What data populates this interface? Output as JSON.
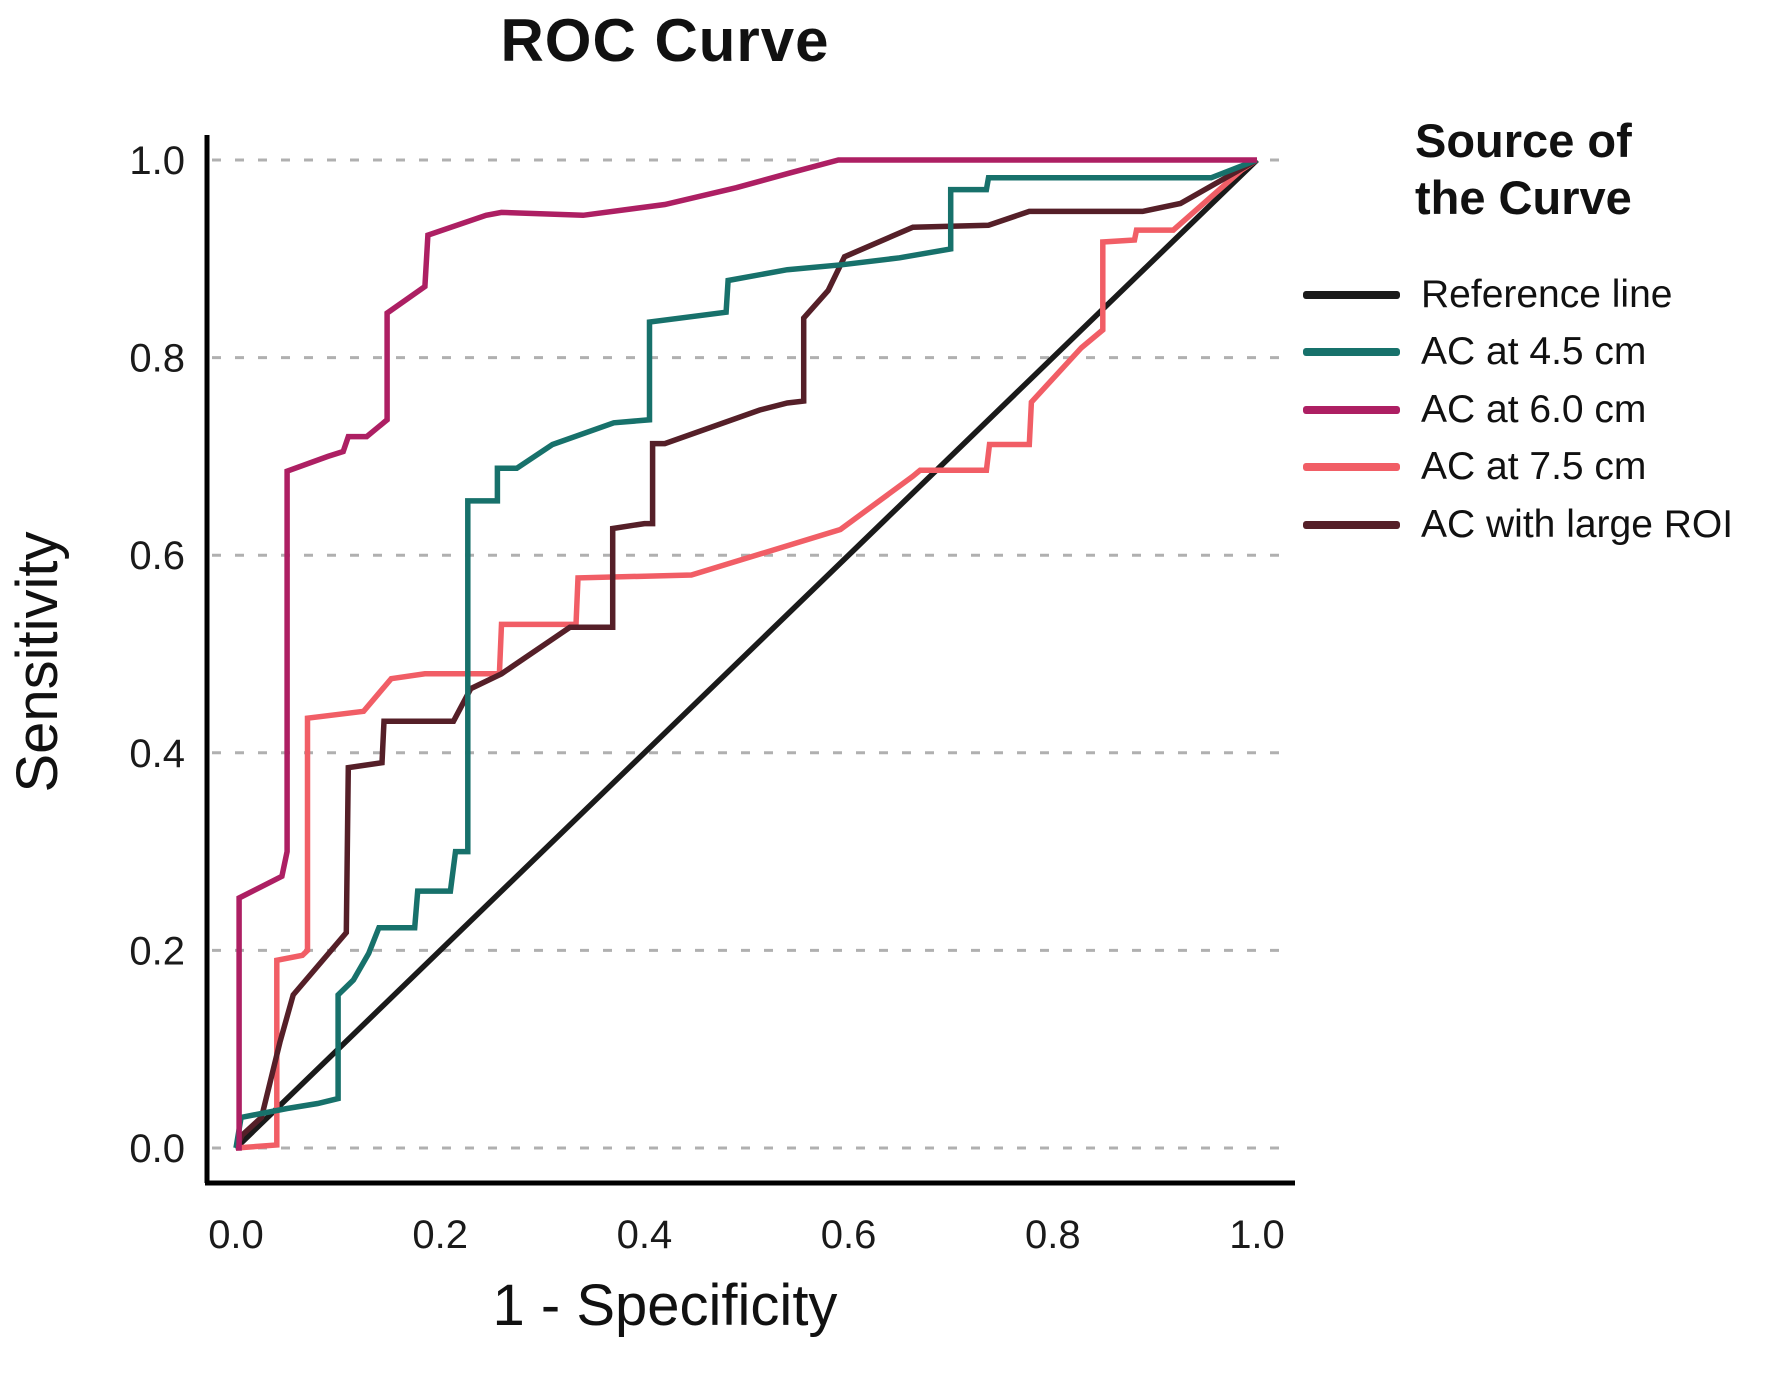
{
  "title": "ROC Curve",
  "x_axis": {
    "label": "1 - Specificity",
    "tick_labels": [
      "0.0",
      "0.2",
      "0.4",
      "0.6",
      "0.8",
      "1.0"
    ],
    "tick_values": [
      0,
      0.2,
      0.4,
      0.6,
      0.8,
      1.0
    ]
  },
  "y_axis": {
    "label": "Sensitivity",
    "tick_labels": [
      "0.0",
      "0.2",
      "0.4",
      "0.6",
      "0.8",
      "1.0"
    ],
    "tick_values": [
      0,
      0.2,
      0.4,
      0.6,
      0.8,
      1.0
    ]
  },
  "legend": {
    "title_lines": [
      "Source of",
      "the Curve"
    ],
    "entries": [
      {
        "label": "Reference line",
        "color": "#1a1a1a"
      },
      {
        "label": "AC at 4.5 cm",
        "color": "#17716b"
      },
      {
        "label": "AC at 6.0 cm",
        "color": "#ad1f63"
      },
      {
        "label": "AC at 7.5 cm",
        "color": "#f15e66"
      },
      {
        "label": "AC with large ROI",
        "color": "#551f28"
      }
    ]
  },
  "colors": {
    "axis": "#000000",
    "grid": "#b0b0b0",
    "background": "#ffffff"
  },
  "chart_data": {
    "type": "line",
    "subtype": "roc-step-curves",
    "title": "ROC Curve",
    "xlabel": "1 - Specificity",
    "ylabel": "Sensitivity",
    "xlim": [
      0,
      1
    ],
    "ylim": [
      0,
      1
    ],
    "grid": "horizontal dashed lines at 0.0,0.2,0.4,0.6,0.8,1.0",
    "legend_position": "right",
    "series": [
      {
        "name": "Reference line",
        "color": "#1a1a1a",
        "points": [
          [
            0,
            0
          ],
          [
            1,
            1
          ]
        ]
      },
      {
        "name": "AC at 7.5 cm",
        "color": "#f15e66",
        "points": [
          [
            0,
            0
          ],
          [
            0.04,
            0.003
          ],
          [
            0.04,
            0.19
          ],
          [
            0.065,
            0.195
          ],
          [
            0.07,
            0.2
          ],
          [
            0.07,
            0.435
          ],
          [
            0.125,
            0.442
          ],
          [
            0.152,
            0.475
          ],
          [
            0.185,
            0.48
          ],
          [
            0.258,
            0.48
          ],
          [
            0.26,
            0.53
          ],
          [
            0.333,
            0.53
          ],
          [
            0.335,
            0.577
          ],
          [
            0.446,
            0.58
          ],
          [
            0.592,
            0.626
          ],
          [
            0.663,
            0.68
          ],
          [
            0.67,
            0.686
          ],
          [
            0.735,
            0.686
          ],
          [
            0.738,
            0.712
          ],
          [
            0.777,
            0.712
          ],
          [
            0.779,
            0.755
          ],
          [
            0.828,
            0.81
          ],
          [
            0.849,
            0.828
          ],
          [
            0.849,
            0.917
          ],
          [
            0.88,
            0.919
          ],
          [
            0.882,
            0.929
          ],
          [
            0.918,
            0.929
          ],
          [
            0.985,
            0.99
          ],
          [
            1,
            1
          ]
        ]
      },
      {
        "name": "AC with large ROI",
        "color": "#551f28",
        "points": [
          [
            0,
            0
          ],
          [
            0.006,
            0.013
          ],
          [
            0.025,
            0.031
          ],
          [
            0.043,
            0.107
          ],
          [
            0.056,
            0.155
          ],
          [
            0.108,
            0.218
          ],
          [
            0.11,
            0.385
          ],
          [
            0.143,
            0.39
          ],
          [
            0.145,
            0.432
          ],
          [
            0.213,
            0.432
          ],
          [
            0.23,
            0.465
          ],
          [
            0.26,
            0.48
          ],
          [
            0.327,
            0.527
          ],
          [
            0.369,
            0.527
          ],
          [
            0.369,
            0.627
          ],
          [
            0.4,
            0.632
          ],
          [
            0.408,
            0.632
          ],
          [
            0.408,
            0.713
          ],
          [
            0.42,
            0.713
          ],
          [
            0.513,
            0.747
          ],
          [
            0.54,
            0.754
          ],
          [
            0.556,
            0.756
          ],
          [
            0.556,
            0.84
          ],
          [
            0.58,
            0.868
          ],
          [
            0.596,
            0.902
          ],
          [
            0.663,
            0.932
          ],
          [
            0.737,
            0.934
          ],
          [
            0.777,
            0.948
          ],
          [
            0.888,
            0.948
          ],
          [
            0.925,
            0.956
          ],
          [
            1,
            1
          ]
        ]
      },
      {
        "name": "AC at 4.5 cm",
        "color": "#17716b",
        "points": [
          [
            0,
            0
          ],
          [
            0.005,
            0.031
          ],
          [
            0.05,
            0.04
          ],
          [
            0.08,
            0.045
          ],
          [
            0.1,
            0.05
          ],
          [
            0.1,
            0.155
          ],
          [
            0.115,
            0.17
          ],
          [
            0.13,
            0.197
          ],
          [
            0.14,
            0.223
          ],
          [
            0.175,
            0.223
          ],
          [
            0.178,
            0.26
          ],
          [
            0.21,
            0.26
          ],
          [
            0.215,
            0.3
          ],
          [
            0.227,
            0.3
          ],
          [
            0.227,
            0.655
          ],
          [
            0.256,
            0.655
          ],
          [
            0.256,
            0.688
          ],
          [
            0.275,
            0.688
          ],
          [
            0.31,
            0.712
          ],
          [
            0.37,
            0.734
          ],
          [
            0.405,
            0.737
          ],
          [
            0.405,
            0.836
          ],
          [
            0.48,
            0.846
          ],
          [
            0.482,
            0.878
          ],
          [
            0.54,
            0.889
          ],
          [
            0.594,
            0.894
          ],
          [
            0.65,
            0.901
          ],
          [
            0.7,
            0.91
          ],
          [
            0.7,
            0.97
          ],
          [
            0.735,
            0.97
          ],
          [
            0.737,
            0.982
          ],
          [
            0.955,
            0.982
          ],
          [
            1,
            1
          ]
        ]
      },
      {
        "name": "AC at 6.0 cm",
        "color": "#ad1f63",
        "points": [
          [
            0,
            0
          ],
          [
            0.003,
            0
          ],
          [
            0.003,
            0.253
          ],
          [
            0.045,
            0.275
          ],
          [
            0.05,
            0.3
          ],
          [
            0.05,
            0.685
          ],
          [
            0.09,
            0.7
          ],
          [
            0.105,
            0.705
          ],
          [
            0.11,
            0.72
          ],
          [
            0.128,
            0.72
          ],
          [
            0.148,
            0.737
          ],
          [
            0.148,
            0.845
          ],
          [
            0.185,
            0.872
          ],
          [
            0.188,
            0.924
          ],
          [
            0.245,
            0.944
          ],
          [
            0.26,
            0.947
          ],
          [
            0.34,
            0.944
          ],
          [
            0.42,
            0.955
          ],
          [
            0.49,
            0.972
          ],
          [
            0.543,
            0.987
          ],
          [
            0.59,
            1.0
          ],
          [
            1,
            1
          ]
        ]
      }
    ]
  }
}
